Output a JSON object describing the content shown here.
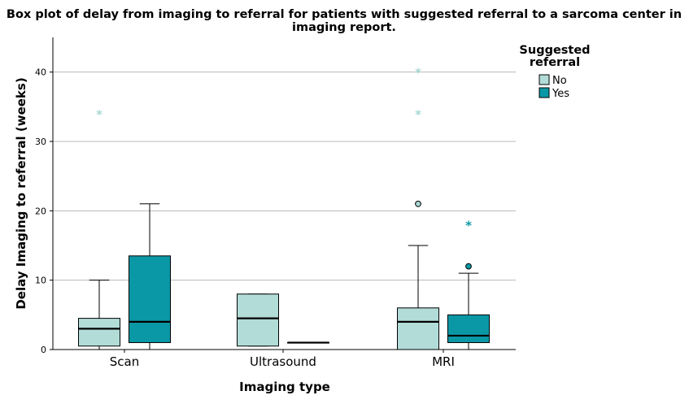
{
  "chart_data": {
    "type": "boxplot",
    "title_lines": [
      "Box plot of delay from imaging to referral for patients with suggested referral to a sarcoma center in",
      "imaging report."
    ],
    "xlabel": "Imaging type",
    "ylabel": "Delay Imaging to referral (weeks)",
    "ylim": [
      0,
      45
    ],
    "yticks": [
      0,
      10,
      20,
      30,
      40
    ],
    "grid": true,
    "categories": [
      "Scan",
      "Ultrasound",
      "MRI"
    ],
    "legend": {
      "title_lines": [
        "Suggested",
        "referral"
      ],
      "placement": "right"
    },
    "series": [
      {
        "name": "No",
        "color": "#b2dcd8",
        "marker_color": "#a8d8d2",
        "boxes": [
          {
            "category": "Scan",
            "min": 0,
            "q1": 0.5,
            "median": 3,
            "q3": 4.5,
            "max": 10,
            "outliers": [],
            "extremes": [
              34
            ]
          },
          {
            "category": "Ultrasound",
            "min": 0.5,
            "q1": 0.5,
            "median": 4.5,
            "q3": 8,
            "max": 8,
            "outliers": [],
            "extremes": []
          },
          {
            "category": "MRI",
            "min": 0,
            "q1": 0,
            "median": 4,
            "q3": 6,
            "max": 15,
            "outliers": [
              21
            ],
            "extremes": [
              34,
              40
            ]
          }
        ]
      },
      {
        "name": "Yes",
        "color": "#0b98a6",
        "marker_color": "#0b98a6",
        "boxes": [
          {
            "category": "Scan",
            "min": 0,
            "q1": 1,
            "median": 4,
            "q3": 13.5,
            "max": 21,
            "outliers": [],
            "extremes": []
          },
          {
            "category": "Ultrasound",
            "min": 1,
            "q1": 1,
            "median": 1,
            "q3": 1,
            "max": 1,
            "outliers": [],
            "extremes": []
          },
          {
            "category": "MRI",
            "min": 0,
            "q1": 1,
            "median": 2,
            "q3": 5,
            "max": 11,
            "outliers": [
              12
            ],
            "extremes": [
              18
            ]
          }
        ]
      }
    ]
  }
}
